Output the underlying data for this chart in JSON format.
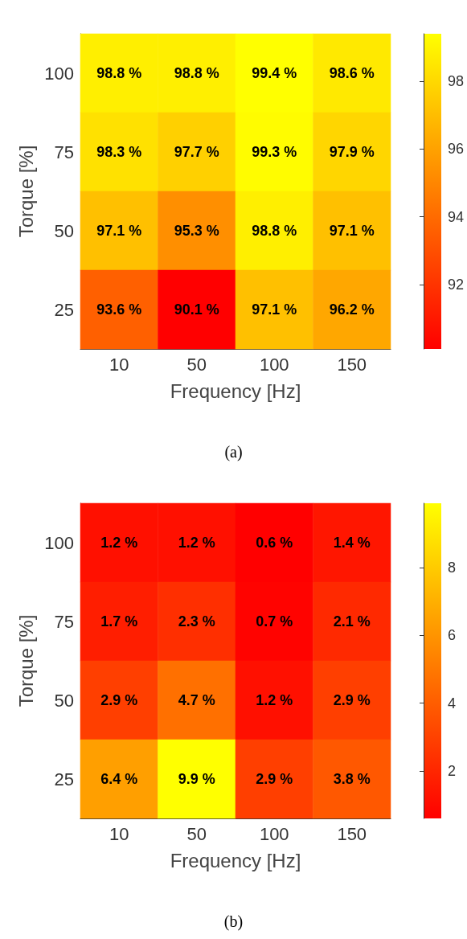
{
  "chart_data": [
    {
      "type": "heatmap",
      "xlabel": "Frequency [Hz]",
      "ylabel": "Torque [%]",
      "categories": [
        "10",
        "50",
        "100",
        "150"
      ],
      "y_categories": [
        "100",
        "75",
        "50",
        "25"
      ],
      "cells": [
        [
          98.8,
          98.8,
          99.4,
          98.6
        ],
        [
          98.3,
          97.7,
          99.3,
          97.9
        ],
        [
          97.1,
          95.3,
          98.8,
          97.1
        ],
        [
          93.6,
          90.1,
          97.1,
          96.2
        ]
      ],
      "cell_labels": [
        [
          "98.8 %",
          "98.8 %",
          "99.4 %",
          "98.6 %"
        ],
        [
          "98.3 %",
          "97.7 %",
          "99.3 %",
          "97.9 %"
        ],
        [
          "97.1 %",
          "95.3 %",
          "98.8 %",
          "97.1 %"
        ],
        [
          "93.6 %",
          "90.1 %",
          "97.1 %",
          "96.2 %"
        ]
      ],
      "clim": [
        90.1,
        99.4
      ],
      "cticks": [
        92,
        94,
        96,
        98
      ],
      "annotations": [
        "(a)"
      ]
    },
    {
      "type": "heatmap",
      "xlabel": "Frequency [Hz]",
      "ylabel": "Torque [%]",
      "categories": [
        "10",
        "50",
        "100",
        "150"
      ],
      "y_categories": [
        "100",
        "75",
        "50",
        "25"
      ],
      "cells": [
        [
          1.2,
          1.2,
          0.6,
          1.4
        ],
        [
          1.7,
          2.3,
          0.7,
          2.1
        ],
        [
          2.9,
          4.7,
          1.2,
          2.9
        ],
        [
          6.4,
          9.9,
          2.9,
          3.8
        ]
      ],
      "cell_labels": [
        [
          "1.2 %",
          "1.2 %",
          "0.6 %",
          "1.4 %"
        ],
        [
          "1.7 %",
          "2.3 %",
          "0.7 %",
          "2.1 %"
        ],
        [
          "2.9 %",
          "4.7 %",
          "1.2 %",
          "2.9 %"
        ],
        [
          "6.4 %",
          "9.9 %",
          "2.9 %",
          "3.8 %"
        ]
      ],
      "clim": [
        0.6,
        9.9
      ],
      "cticks": [
        2,
        4,
        6,
        8
      ],
      "annotations": [
        "(b)"
      ]
    }
  ]
}
